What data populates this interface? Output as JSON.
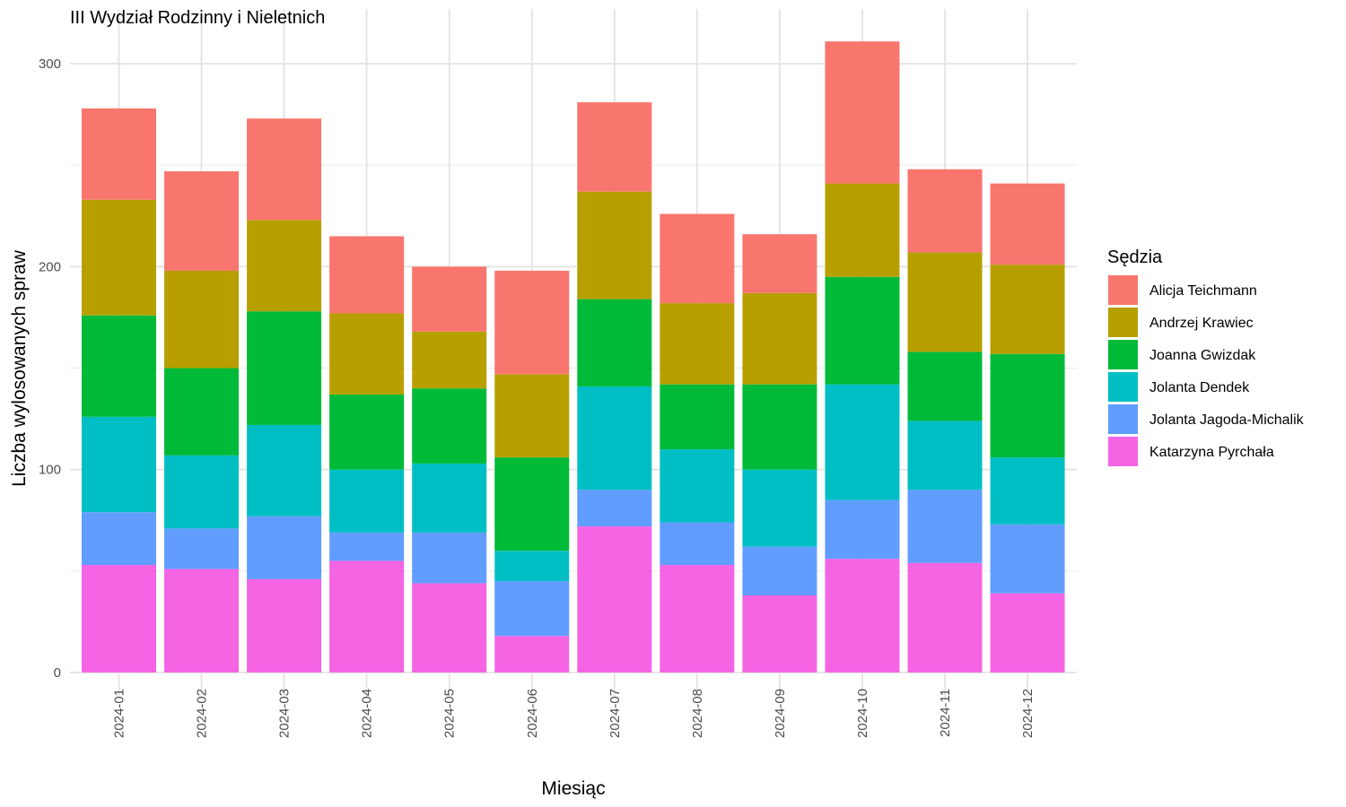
{
  "chart_data": {
    "type": "bar",
    "stacked": true,
    "title": "III Wydział Rodzinny i Nieletnich",
    "xlabel": "Miesiąc",
    "ylabel": "Liczba wylosowanych spraw",
    "ylim": [
      0,
      320
    ],
    "yticks": [
      0,
      100,
      200,
      300
    ],
    "grid": true,
    "legend_title": "Sędzia",
    "legend_position": "right",
    "categories": [
      "2024-01",
      "2024-02",
      "2024-03",
      "2024-04",
      "2024-05",
      "2024-06",
      "2024-07",
      "2024-08",
      "2024-09",
      "2024-10",
      "2024-11",
      "2024-12"
    ],
    "series": [
      {
        "name": "Katarzyna Pyrchała",
        "color": "#F564E3",
        "values": [
          53,
          51,
          46,
          55,
          44,
          18,
          72,
          53,
          38,
          56,
          54,
          39
        ]
      },
      {
        "name": "Jolanta Jagoda-Michalik",
        "color": "#619CFF",
        "values": [
          26,
          20,
          31,
          14,
          25,
          27,
          18,
          21,
          24,
          29,
          36,
          34
        ]
      },
      {
        "name": "Jolanta Dendek",
        "color": "#00BFC4",
        "values": [
          47,
          36,
          45,
          31,
          34,
          15,
          51,
          36,
          38,
          57,
          34,
          33
        ]
      },
      {
        "name": "Joanna Gwizdak",
        "color": "#00BA38",
        "values": [
          50,
          43,
          56,
          37,
          37,
          46,
          43,
          32,
          42,
          53,
          34,
          51
        ]
      },
      {
        "name": "Andrzej Krawiec",
        "color": "#B79F00",
        "values": [
          57,
          48,
          45,
          40,
          28,
          41,
          53,
          40,
          45,
          46,
          49,
          44
        ]
      },
      {
        "name": "Alicja Teichmann",
        "color": "#F8766D",
        "values": [
          45,
          49,
          50,
          38,
          32,
          51,
          44,
          44,
          29,
          70,
          41,
          40
        ]
      }
    ],
    "legend_order": [
      "Alicja Teichmann",
      "Andrzej Krawiec",
      "Joanna Gwizdak",
      "Jolanta Dendek",
      "Jolanta Jagoda-Michalik",
      "Katarzyna Pyrchała"
    ]
  }
}
